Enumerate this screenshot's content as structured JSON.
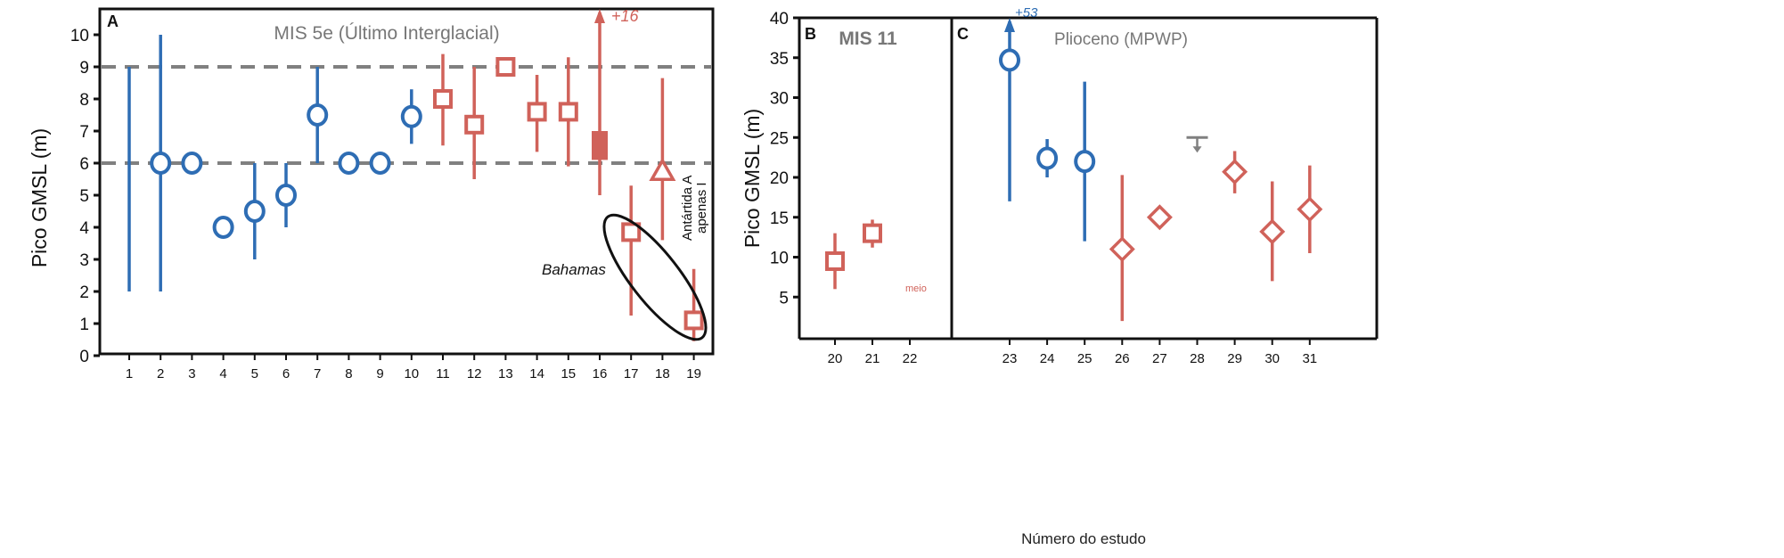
{
  "colors": {
    "blue": "#2e6db4",
    "red": "#d0625a",
    "gray": "#808080",
    "black": "#111111"
  },
  "chart_data": [
    {
      "type": "scatter",
      "panel_label": "A",
      "title": "MIS 5e (Último Interglacial)",
      "ylabel": "Pico GMSL (m)",
      "ylim": [
        0,
        10
      ],
      "yticks": [
        0,
        1,
        2,
        3,
        4,
        5,
        6,
        7,
        8,
        9,
        10
      ],
      "xticks": [
        1,
        2,
        3,
        4,
        5,
        6,
        7,
        8,
        9,
        10,
        11,
        12,
        13,
        14,
        15,
        16,
        17,
        18,
        19
      ],
      "reference_lines": [
        6,
        9
      ],
      "annotations": {
        "arrow_label": "+16",
        "bahamas": "Bahamas",
        "antarctic_line1": "Antártida A",
        "antarctic_line2": "apenas I"
      },
      "points": [
        {
          "x": 1,
          "y": null,
          "low": 2,
          "high": 9,
          "marker": "none",
          "color": "blue"
        },
        {
          "x": 2,
          "y": 6,
          "low": 2,
          "high": 10,
          "marker": "circle",
          "color": "blue"
        },
        {
          "x": 3,
          "y": 6,
          "low": null,
          "high": null,
          "marker": "circle",
          "color": "blue"
        },
        {
          "x": 4,
          "y": 4,
          "low": null,
          "high": null,
          "marker": "circle",
          "color": "blue"
        },
        {
          "x": 5,
          "y": 4.5,
          "low": 3,
          "high": 6,
          "marker": "circle",
          "color": "blue"
        },
        {
          "x": 6,
          "y": 5,
          "low": 4,
          "high": 6,
          "marker": "circle",
          "color": "blue"
        },
        {
          "x": 7,
          "y": 7.5,
          "low": 6,
          "high": 9,
          "marker": "circle",
          "color": "blue"
        },
        {
          "x": 8,
          "y": 6,
          "low": null,
          "high": null,
          "marker": "circle",
          "color": "blue"
        },
        {
          "x": 9,
          "y": 6,
          "low": null,
          "high": null,
          "marker": "circle",
          "color": "blue"
        },
        {
          "x": 10,
          "y": 7.45,
          "low": 6.6,
          "high": 8.3,
          "marker": "circle",
          "color": "blue"
        },
        {
          "x": 11,
          "y": 8,
          "low": 6.55,
          "high": 9.4,
          "marker": "square",
          "color": "red"
        },
        {
          "x": 12,
          "y": 7.2,
          "low": 5.5,
          "high": 9,
          "marker": "square",
          "color": "red"
        },
        {
          "x": 13,
          "y": 9,
          "low": null,
          "high": null,
          "marker": "square",
          "color": "red"
        },
        {
          "x": 14,
          "y": 7.6,
          "low": 6.35,
          "high": 8.75,
          "marker": "square",
          "color": "red"
        },
        {
          "x": 15,
          "y": 7.6,
          "low": 5.9,
          "high": 9.3,
          "marker": "square",
          "color": "red"
        },
        {
          "x": 16,
          "y": null,
          "box_low": 6.1,
          "box_high": 7.0,
          "low": 5,
          "high": 16,
          "marker": "filled-box",
          "color": "red",
          "arrow_up": true
        },
        {
          "x": 17,
          "y": 3.85,
          "low": 1.25,
          "high": 5.3,
          "marker": "square",
          "color": "red"
        },
        {
          "x": 18,
          "y": 5.8,
          "low": 3.6,
          "high": 8.65,
          "marker": "triangle",
          "color": "red"
        },
        {
          "x": 19,
          "y": 1.1,
          "low": 0.45,
          "high": 2.7,
          "marker": "square",
          "color": "red"
        }
      ]
    },
    {
      "type": "scatter",
      "panel_label": "B",
      "title": "MIS 11",
      "ylabel": "Pico GMSL (m)",
      "ylim": [
        0,
        40
      ],
      "yticks": [
        5,
        10,
        15,
        20,
        25,
        30,
        35,
        40
      ],
      "xticks": [
        20,
        21,
        22
      ],
      "annotations": {
        "x22_note": "meio"
      },
      "points": [
        {
          "x": 20,
          "y": 9.5,
          "low": 6,
          "high": 13,
          "marker": "square",
          "color": "red"
        },
        {
          "x": 21,
          "y": 13,
          "low": 11.2,
          "high": 14.7,
          "marker": "square",
          "color": "red"
        }
      ]
    },
    {
      "type": "scatter",
      "panel_label": "C",
      "title": "Plioceno (MPWP)",
      "xlabel": "Número do estudo",
      "ylim": [
        0,
        40
      ],
      "xticks": [
        23,
        24,
        25,
        26,
        27,
        28,
        29,
        30,
        31
      ],
      "annotations": {
        "arrow_label": "+53"
      },
      "points": [
        {
          "x": 23,
          "y": 34.7,
          "low": 17,
          "high": 53,
          "marker": "circle",
          "color": "blue",
          "arrow_up": true
        },
        {
          "x": 24,
          "y": 22.4,
          "low": 20,
          "high": 24.8,
          "marker": "circle",
          "color": "blue"
        },
        {
          "x": 25,
          "y": 22,
          "low": 12,
          "high": 32,
          "marker": "circle",
          "color": "blue"
        },
        {
          "x": 26,
          "y": 11,
          "low": 2,
          "high": 20.3,
          "marker": "diamond",
          "color": "red"
        },
        {
          "x": 27,
          "y": 15,
          "low": null,
          "high": null,
          "marker": "diamond",
          "color": "red"
        },
        {
          "x": 28,
          "y": 25,
          "low": null,
          "high": null,
          "marker": "upper-limit",
          "color": "gray"
        },
        {
          "x": 29,
          "y": 20.7,
          "low": 18,
          "high": 23.3,
          "marker": "diamond",
          "color": "red"
        },
        {
          "x": 30,
          "y": 13.2,
          "low": 7,
          "high": 19.5,
          "marker": "diamond",
          "color": "red"
        },
        {
          "x": 31,
          "y": 16,
          "low": 10.5,
          "high": 21.5,
          "marker": "diamond",
          "color": "red"
        }
      ]
    }
  ]
}
